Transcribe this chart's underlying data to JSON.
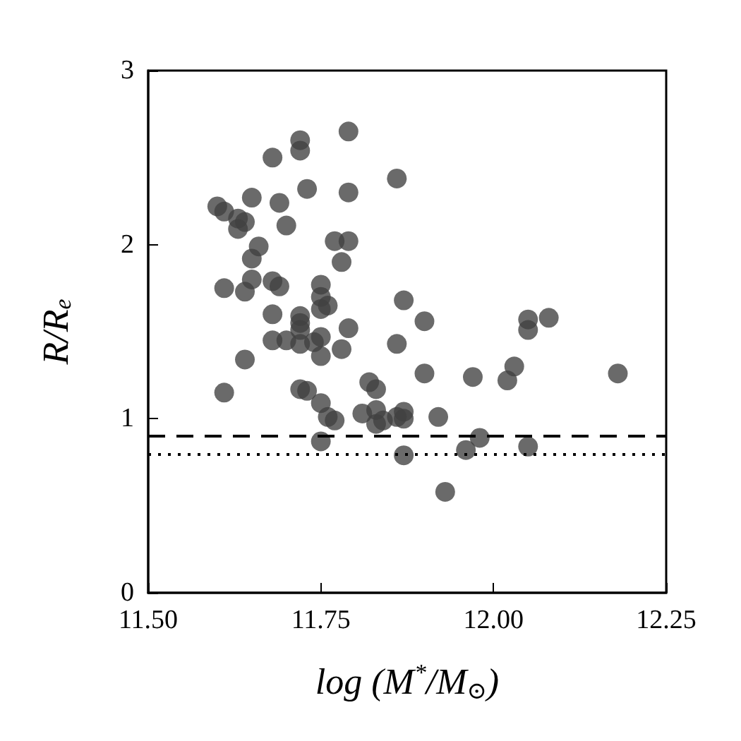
{
  "chart_data": {
    "type": "scatter",
    "xlabel": "log (M$^{*}$/M$_{⊙}$)",
    "ylabel": "R/R$_{e}$",
    "xlim": [
      11.5,
      12.25
    ],
    "ylim": [
      0,
      3
    ],
    "xticks": [
      {
        "value": 11.5,
        "label": "11.50"
      },
      {
        "value": 11.75,
        "label": "11.75"
      },
      {
        "value": 12,
        "label": "12.00"
      },
      {
        "value": 12.25,
        "label": "12.25"
      }
    ],
    "yticks": [
      0,
      1,
      2,
      3
    ],
    "grid": false,
    "marker": "circle",
    "series": [
      {
        "color": "#404040",
        "x": [
          11.72,
          11.72,
          11.79,
          11.68,
          11.86,
          11.73,
          11.79,
          11.65,
          11.6,
          11.61,
          11.69,
          11.63,
          11.64,
          11.63,
          11.7,
          11.77,
          11.79,
          11.66,
          11.65,
          11.78,
          11.65,
          11.61,
          11.64,
          11.68,
          11.69,
          11.75,
          11.75,
          11.75,
          11.76,
          11.87,
          11.68,
          11.72,
          11.72,
          11.72,
          11.79,
          11.68,
          11.7,
          11.72,
          11.74,
          11.75,
          11.78,
          11.75,
          11.86,
          11.64,
          11.61,
          11.72,
          11.73,
          11.82,
          11.83,
          11.9,
          12.05,
          12.05,
          11.9,
          11.97,
          12.03,
          12.02,
          11.75,
          11.76,
          11.77,
          11.81,
          11.83,
          11.83,
          11.84,
          11.86,
          11.87,
          11.87,
          11.92,
          11.75,
          11.87,
          11.98,
          11.96,
          12.05,
          11.93,
          12.08,
          12.18
        ],
        "values": [
          2.6,
          2.54,
          2.65,
          2.5,
          2.38,
          2.32,
          2.3,
          2.27,
          2.22,
          2.19,
          2.24,
          2.15,
          2.13,
          2.09,
          2.11,
          2.02,
          2.02,
          1.99,
          1.92,
          1.9,
          1.8,
          1.75,
          1.73,
          1.79,
          1.76,
          1.77,
          1.7,
          1.63,
          1.65,
          1.68,
          1.6,
          1.59,
          1.55,
          1.51,
          1.52,
          1.45,
          1.45,
          1.43,
          1.44,
          1.47,
          1.4,
          1.36,
          1.43,
          1.34,
          1.15,
          1.17,
          1.16,
          1.21,
          1.17,
          1.56,
          1.57,
          1.51,
          1.26,
          1.24,
          1.3,
          1.22,
          1.09,
          1.01,
          0.99,
          1.03,
          1.05,
          0.97,
          0.99,
          1.01,
          1.04,
          1.0,
          1.01,
          0.87,
          0.79,
          0.89,
          0.82,
          0.84,
          0.58,
          1.58,
          1.26
        ]
      }
    ],
    "ref_lines": [
      {
        "axis": "y",
        "value": 0.9,
        "color": "#000000",
        "line_style": "dashed"
      },
      {
        "axis": "y",
        "value": 0.8,
        "color": "#000000",
        "line_style": "dotted"
      }
    ]
  }
}
